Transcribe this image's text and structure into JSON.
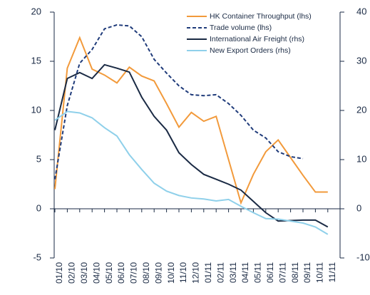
{
  "chart_data": {
    "type": "line",
    "categories": [
      "01/10",
      "02/10",
      "03/10",
      "04/10",
      "05/10",
      "06/10",
      "07/10",
      "08/10",
      "09/10",
      "10/10",
      "11/10",
      "12/10",
      "01/11",
      "02/11",
      "03/11",
      "04/11",
      "05/11",
      "06/11",
      "07/11",
      "08/11",
      "09/11",
      "10/11",
      "11/11"
    ],
    "ylim": [
      -5,
      20
    ],
    "yticks": [
      -5,
      0,
      5,
      10,
      15,
      20
    ],
    "y2lim": [
      -10,
      40
    ],
    "y2ticks": [
      -10,
      0,
      10,
      20,
      30,
      40
    ],
    "legend": "upper right",
    "series": [
      {
        "name": "HK Container Throughput (lhs)",
        "color": "#f29a3b",
        "style": "solid",
        "values": [
          2.0,
          14.3,
          17.4,
          14.2,
          13.6,
          12.8,
          14.4,
          13.5,
          13.0,
          10.7,
          8.3,
          9.8,
          8.9,
          9.4,
          5.0,
          0.6,
          3.5,
          5.8,
          7.0,
          5.2,
          3.4,
          1.7,
          1.7
        ]
      },
      {
        "name": "Trade volume (lhs)",
        "color": "#1f3b7a",
        "style": "dashed",
        "values": [
          3.0,
          10.5,
          14.8,
          16.2,
          18.3,
          18.7,
          18.6,
          17.5,
          15.2,
          13.8,
          12.5,
          11.6,
          11.5,
          11.6,
          10.7,
          9.5,
          8.0,
          7.2,
          5.8,
          5.3,
          5.1,
          null,
          null
        ]
      },
      {
        "name": "International Air Freight (rhs)",
        "color": "#1a2a44",
        "style": "solid",
        "axis": "y2",
        "values": [
          16.0,
          26.5,
          27.7,
          26.5,
          29.3,
          28.6,
          27.8,
          22.7,
          18.8,
          16.0,
          11.4,
          9.0,
          7.0,
          6.0,
          5.0,
          3.8,
          1.5,
          -0.8,
          -2.5,
          -2.4,
          -2.3,
          -2.3,
          -3.7
        ]
      },
      {
        "name": "New Export Orders (rhs)",
        "color": "#8fd0ea",
        "style": "solid",
        "axis": "y2",
        "values": [
          18.0,
          19.8,
          19.5,
          18.5,
          16.5,
          14.8,
          11.0,
          8.0,
          5.2,
          3.6,
          2.7,
          2.2,
          2.0,
          1.6,
          1.9,
          0.5,
          -0.8,
          -2.0,
          -2.1,
          -2.5,
          -2.9,
          -3.7,
          -5.2
        ]
      }
    ]
  }
}
